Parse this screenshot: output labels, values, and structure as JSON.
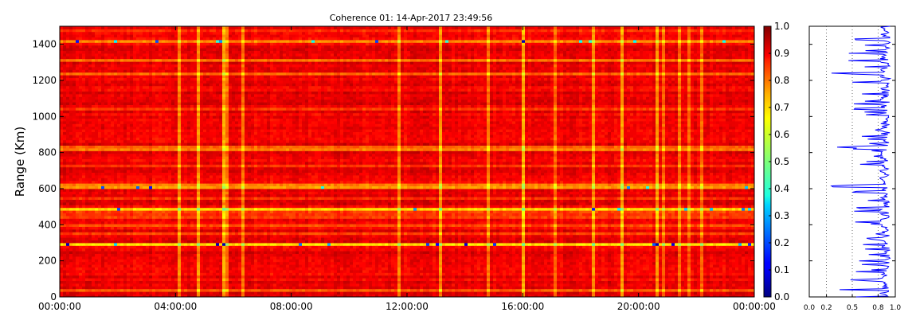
{
  "chart_data": [
    {
      "type": "heatmap",
      "title": "Coherence 01: 14-Apr-2017 23:49:56",
      "ylabel": "Range (Km)",
      "xlabel": "",
      "x_tick_labels": [
        "00:00:00",
        "04:00:00",
        "08:00:00",
        "12:00:00",
        "16:00:00",
        "20:00:00",
        "00:00:00"
      ],
      "xlim_hours": [
        0,
        24
      ],
      "y_ticks": [
        0,
        200,
        400,
        600,
        800,
        1000,
        1200,
        1400
      ],
      "ylim": [
        0,
        1500
      ],
      "colormap": "jet",
      "zlim": [
        0.0,
        1.0
      ],
      "colorbar_ticks": [
        "0.0",
        "0.1",
        "0.2",
        "0.3",
        "0.4",
        "0.5",
        "0.6",
        "0.7",
        "0.8",
        "0.9",
        "1.0"
      ],
      "grid": false,
      "typical_value_range": [
        0.8,
        1.0
      ],
      "low_coherence_ranges_km": [
        40,
        290,
        490,
        615,
        825,
        1240,
        1310,
        1420
      ]
    },
    {
      "type": "line",
      "series_color": "#0000ff",
      "xlim": [
        0.0,
        1.0
      ],
      "x_tick_labels": [
        "0.0",
        "0.2",
        "0.5",
        "0.8",
        "1.0"
      ],
      "x_ticks": [
        0.0,
        0.2,
        0.5,
        0.8,
        1.0
      ],
      "dotted_reference_lines": [
        0.2,
        0.5,
        0.8
      ],
      "ylim": [
        0,
        1500
      ],
      "grid": false
    }
  ]
}
